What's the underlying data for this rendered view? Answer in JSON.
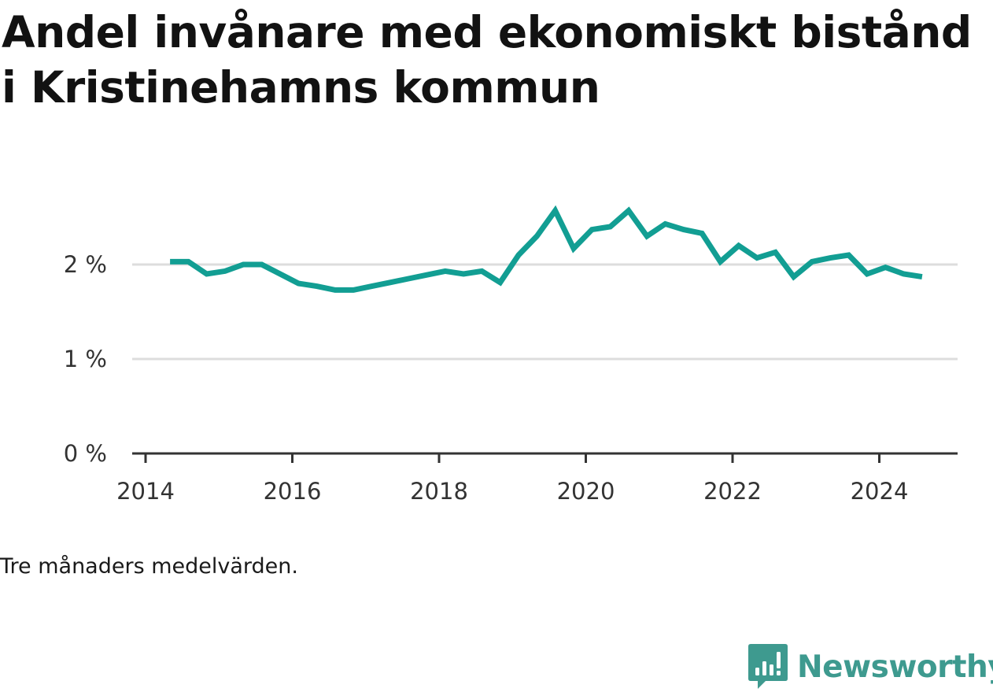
{
  "title": "Andel invånare med ekonomiskt bistånd i Kristinehamns kommun",
  "note": "Tre månaders medelvärden.",
  "brand": {
    "name": "Newsworthy",
    "icon": "newsworthy-logo-icon",
    "color": "#3e9a8f"
  },
  "colors": {
    "line": "#129e93",
    "grid": "#dddddd",
    "axis": "#333333"
  },
  "chart_data": {
    "type": "line",
    "title": "Andel invånare med ekonomiskt bistånd i Kristinehamns kommun",
    "xlabel": "",
    "ylabel": "",
    "x_ticks": [
      "2014",
      "2016",
      "2018",
      "2020",
      "2022",
      "2024"
    ],
    "y_ticks": [
      "0 %",
      "1 %",
      "2 %"
    ],
    "ylim": [
      0,
      2.7
    ],
    "grid": true,
    "series": [
      {
        "x": [
          "2014-05",
          "2014-08",
          "2014-11",
          "2015-02",
          "2015-05",
          "2015-08",
          "2015-11",
          "2016-02",
          "2016-05",
          "2016-08",
          "2016-11",
          "2017-02",
          "2017-05",
          "2017-08",
          "2017-11",
          "2018-02",
          "2018-05",
          "2018-08",
          "2018-11",
          "2019-02",
          "2019-05",
          "2019-08",
          "2019-11",
          "2020-02",
          "2020-05",
          "2020-08",
          "2020-11",
          "2021-02",
          "2021-05",
          "2021-08",
          "2021-11",
          "2022-02",
          "2022-05",
          "2022-08",
          "2022-11",
          "2023-02",
          "2023-05",
          "2023-08",
          "2023-11",
          "2024-02",
          "2024-05",
          "2024-08"
        ],
        "values": [
          2.03,
          2.03,
          1.9,
          1.93,
          2.0,
          2.0,
          1.9,
          1.8,
          1.77,
          1.73,
          1.73,
          1.77,
          1.81,
          1.85,
          1.89,
          1.93,
          1.9,
          1.93,
          1.81,
          2.1,
          2.3,
          2.57,
          2.17,
          2.37,
          2.4,
          2.57,
          2.3,
          2.43,
          2.37,
          2.33,
          2.03,
          2.2,
          2.07,
          2.13,
          1.87,
          2.03,
          2.07,
          2.1,
          1.9,
          1.97,
          1.9,
          1.87
        ]
      }
    ]
  }
}
